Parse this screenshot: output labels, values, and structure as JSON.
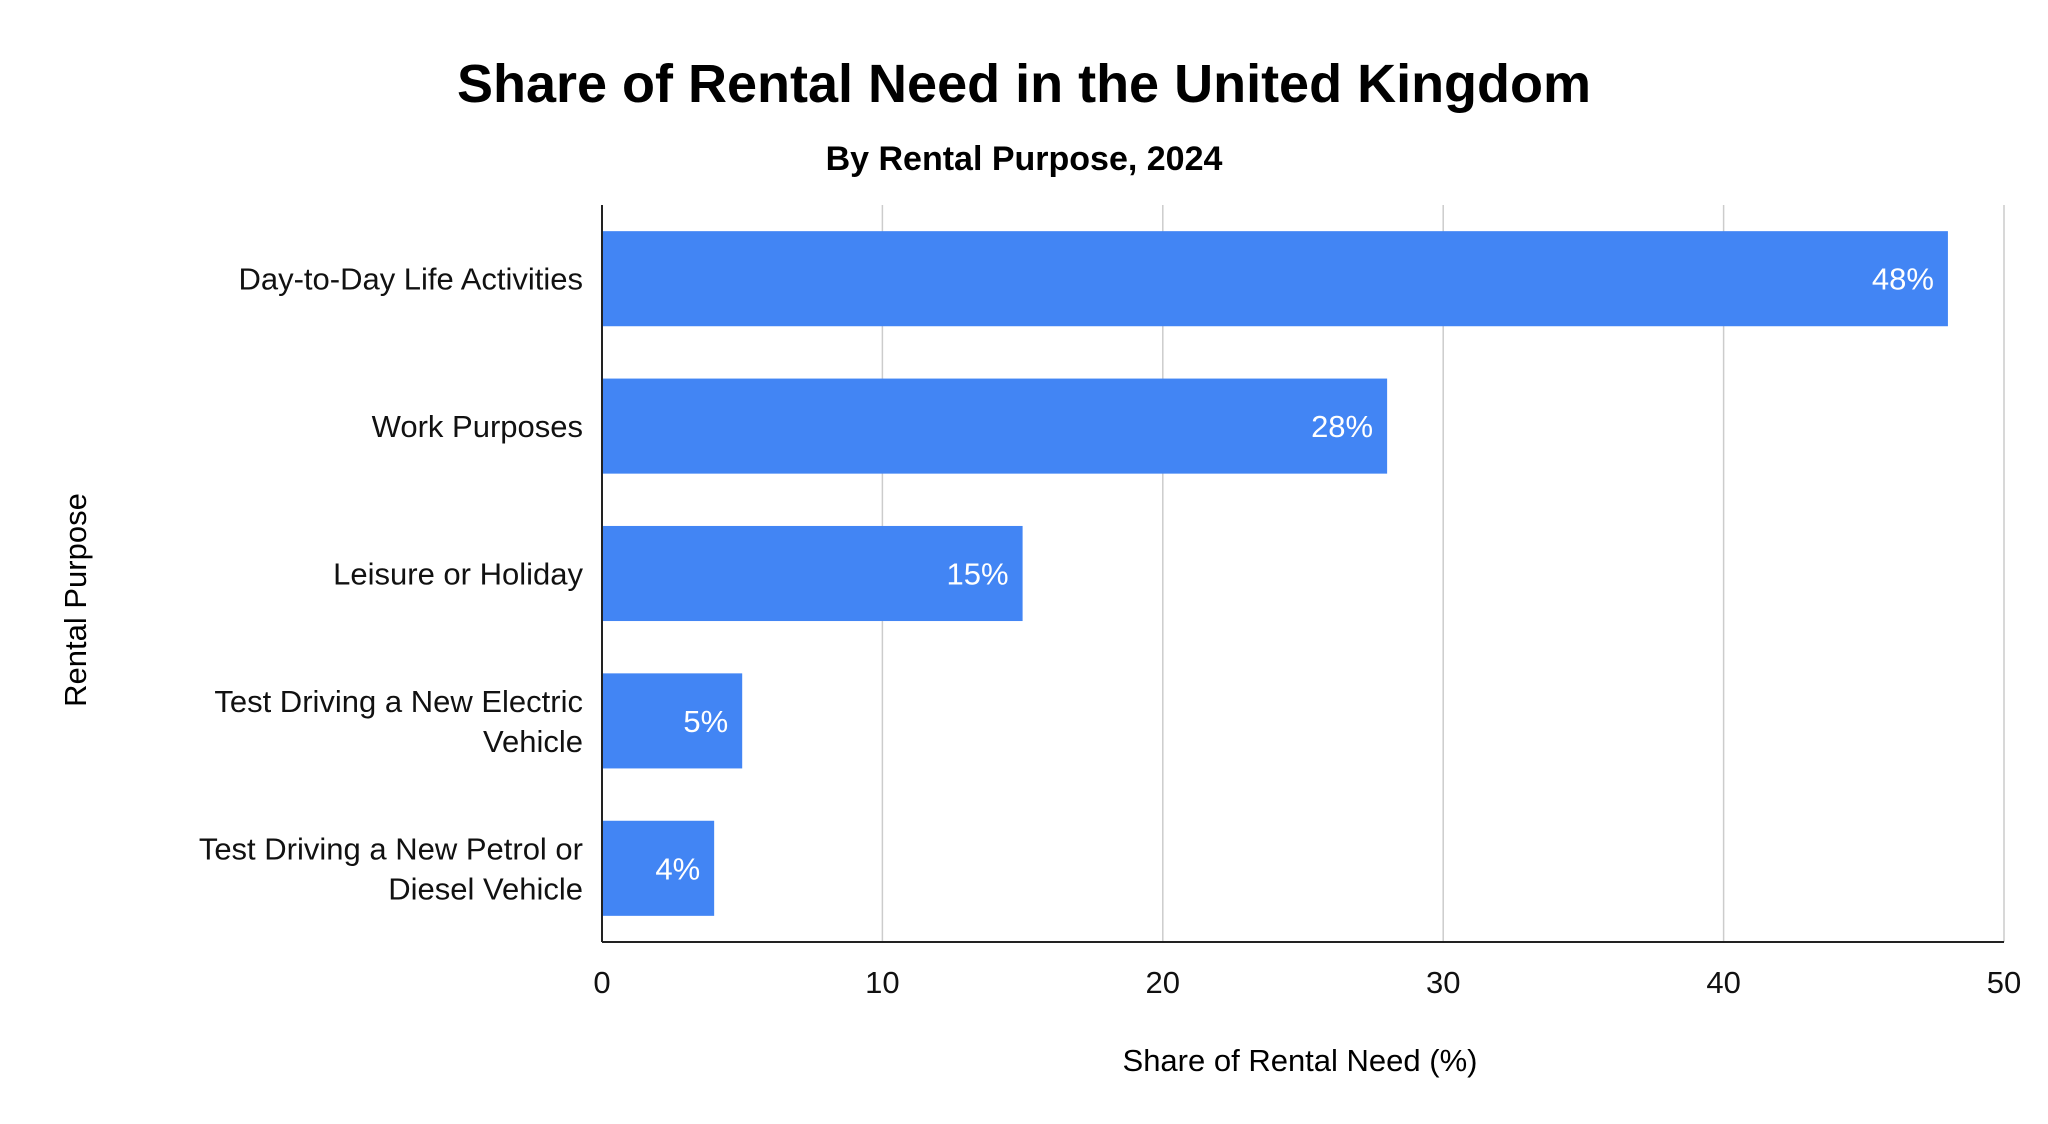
{
  "chart_data": {
    "type": "bar",
    "orientation": "horizontal",
    "title": "Share of Rental Need in the United Kingdom",
    "subtitle": "By Rental Purpose, 2024",
    "xlabel": "Share of Rental Need (%)",
    "ylabel": "Rental Purpose",
    "categories": [
      [
        "Day-to-Day Life Activities"
      ],
      [
        "Work Purposes"
      ],
      [
        "Leisure or Holiday"
      ],
      [
        "Test Driving a New Electric",
        "Vehicle"
      ],
      [
        "Test Driving a New Petrol or",
        "Diesel Vehicle"
      ]
    ],
    "values": [
      48,
      28,
      15,
      5,
      4
    ],
    "data_labels": [
      "48%",
      "28%",
      "15%",
      "5%",
      "4%"
    ],
    "xlim": [
      0,
      50
    ],
    "xticks": [
      0,
      10,
      20,
      30,
      40,
      50
    ],
    "grid": "vertical",
    "legend": "none",
    "colors": {
      "bar": "#4285f4",
      "title": "#1f4e8c",
      "grid": "#cccccc",
      "axis": "#222222",
      "text": "#111111",
      "data_label": "#ffffff"
    }
  }
}
